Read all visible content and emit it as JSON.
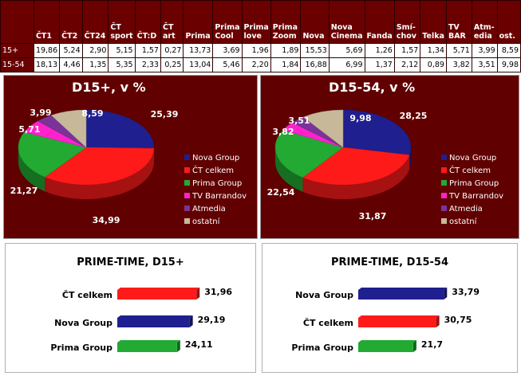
{
  "table": {
    "columns": [
      "ČT1",
      "ČT2",
      "ČT24",
      "ČT sport",
      "ČT:D",
      "ČT art",
      "Prima",
      "Prima Cool",
      "Prima love",
      "Prima Zoom",
      "Nova",
      "Nova Cinema",
      "Fanda",
      "Smí-chov",
      "Telka",
      "TV BAR",
      "Atm-edia",
      "ost."
    ],
    "rows": [
      {
        "label": "15+",
        "values": [
          "19,86",
          "5,24",
          "2,90",
          "5,15",
          "1,57",
          "0,27",
          "13,73",
          "3,69",
          "1,96",
          "1,89",
          "15,53",
          "5,69",
          "1,26",
          "1,57",
          "1,34",
          "5,71",
          "3,99",
          "8,59"
        ]
      },
      {
        "label": "15-54",
        "values": [
          "18,13",
          "4,46",
          "1,35",
          "5,35",
          "2,33",
          "0,25",
          "13,04",
          "5,46",
          "2,20",
          "1,84",
          "16,88",
          "6,99",
          "1,37",
          "2,12",
          "0,89",
          "3,82",
          "3,51",
          "9,98"
        ]
      }
    ]
  },
  "colors": {
    "Nova Group": "#1f1f8f",
    "ČT celkem": "#ff1a1a",
    "Prima Group": "#22aa33",
    "TV Barrandov": "#ff22cc",
    "Atmedia": "#7a3399",
    "ostatní": "#c8b89a"
  },
  "chart_data": [
    {
      "type": "pie",
      "title": "D15+, v %",
      "categories": [
        "Nova Group",
        "ČT celkem",
        "Prima Group",
        "TV Barrandov",
        "Atmedia",
        "ostatní"
      ],
      "values": [
        25.39,
        34.99,
        21.27,
        5.71,
        3.99,
        8.59
      ],
      "value_labels": [
        "25,39",
        "34,99",
        "21,27",
        "5,71",
        "3,99",
        "8,59"
      ],
      "legend": "right"
    },
    {
      "type": "pie",
      "title": "D15-54, v %",
      "categories": [
        "Nova Group",
        "ČT celkem",
        "Prima Group",
        "TV Barrandov",
        "Atmedia",
        "ostatní"
      ],
      "values": [
        28.25,
        31.87,
        22.54,
        3.82,
        3.51,
        9.98
      ],
      "value_labels": [
        "28,25",
        "31,87",
        "22,54",
        "3,82",
        "3,51",
        "9,98"
      ],
      "legend": "right"
    },
    {
      "type": "bar",
      "orientation": "horizontal",
      "title": "PRIME-TIME, D15+",
      "categories": [
        "ČT celkem",
        "Nova Group",
        "Prima Group"
      ],
      "values": [
        31.96,
        29.19,
        24.11
      ],
      "value_labels": [
        "31,96",
        "29,19",
        "24,11"
      ],
      "xlim": [
        0,
        38
      ]
    },
    {
      "type": "bar",
      "orientation": "horizontal",
      "title": "PRIME-TIME, D15-54",
      "categories": [
        "Nova Group",
        "ČT celkem",
        "Prima Group"
      ],
      "values": [
        33.79,
        30.75,
        21.7
      ],
      "value_labels": [
        "33,79",
        "30,75",
        "21,7"
      ],
      "xlim": [
        0,
        40
      ]
    }
  ]
}
